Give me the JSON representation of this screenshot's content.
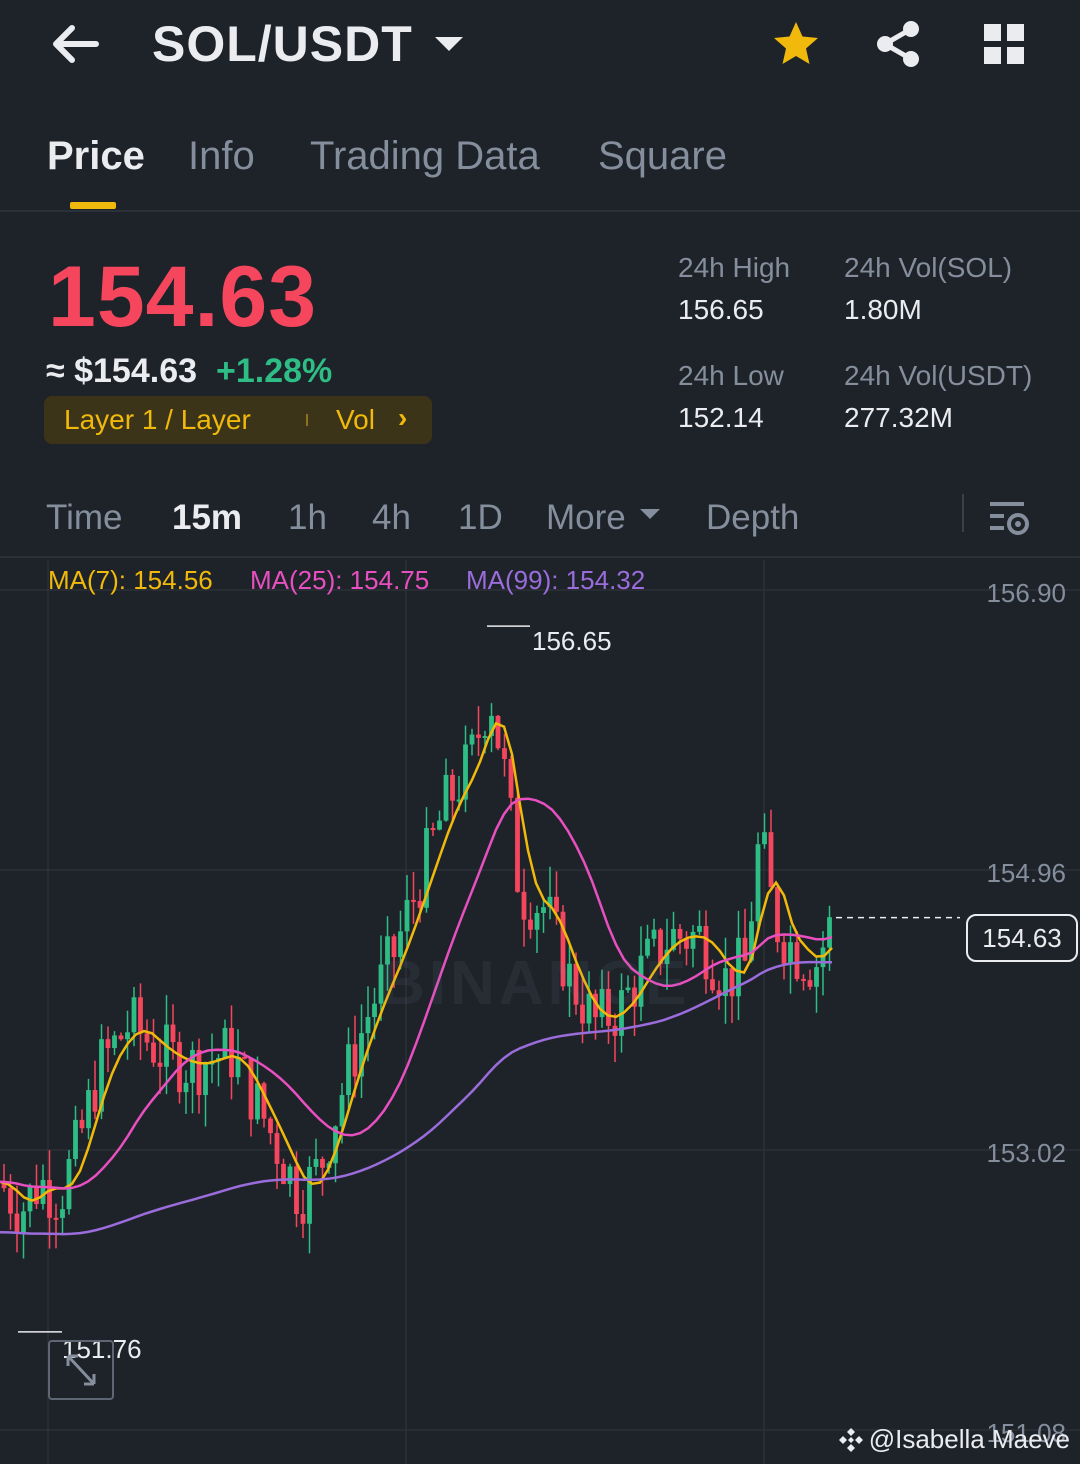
{
  "header": {
    "pair": "SOL/USDT",
    "icons": [
      "back-arrow-icon",
      "star-icon",
      "share-icon",
      "grid-icon"
    ]
  },
  "tabs": [
    "Price",
    "Info",
    "Trading Data",
    "Square"
  ],
  "price": {
    "last": "154.63",
    "usd": "≈ $154.63",
    "change": "+1.28%",
    "tag": "Layer 1 / Layer",
    "tag_vol": "Vol",
    "tag_chevron": "›"
  },
  "stats": {
    "high_label": "24h High",
    "high": "156.65",
    "low_label": "24h Low",
    "low": "152.14",
    "vol_sol_label": "24h Vol(SOL)",
    "vol_sol": "1.80M",
    "vol_usdt_label": "24h Vol(USDT)",
    "vol_usdt": "277.32M"
  },
  "intervals": [
    "Time",
    "15m",
    "1h",
    "4h",
    "1D",
    "More",
    "Depth"
  ],
  "active_interval": "15m",
  "ma": {
    "ma7": "MA(7): 154.56",
    "ma25": "MA(25): 154.75",
    "ma99": "MA(99): 154.32"
  },
  "colors": {
    "up": "#2ebd85",
    "down": "#f6465d",
    "accent": "#f0b90b",
    "ma7": "#f0b90b",
    "ma25": "#e84fc0",
    "ma99": "#9b6cdb"
  },
  "chart_data": {
    "type": "candlestick",
    "y_ticks": [
      "156.90",
      "154.96",
      "153.02",
      "151.08"
    ],
    "ylim": [
      151.08,
      156.9
    ],
    "last_price": "154.63",
    "high_marker": "156.65",
    "low_marker": "151.76",
    "watermark": "BINANCE"
  },
  "credit": "@Isabella Maeve"
}
